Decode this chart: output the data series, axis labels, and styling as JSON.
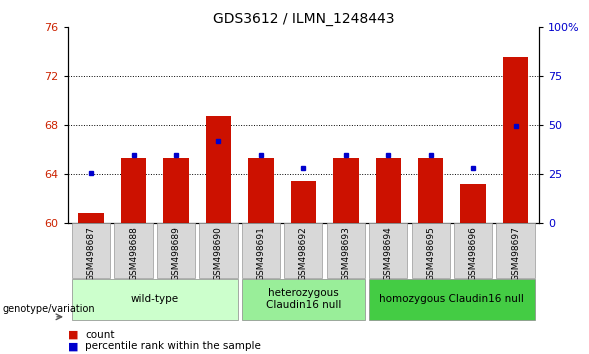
{
  "title": "GDS3612 / ILMN_1248443",
  "samples": [
    "GSM498687",
    "GSM498688",
    "GSM498689",
    "GSM498690",
    "GSM498691",
    "GSM498692",
    "GSM498693",
    "GSM498694",
    "GSM498695",
    "GSM498696",
    "GSM498697"
  ],
  "red_values": [
    60.8,
    65.3,
    65.3,
    68.7,
    65.3,
    63.4,
    65.3,
    65.3,
    65.3,
    63.2,
    73.5
  ],
  "blue_values": [
    64.1,
    65.5,
    65.5,
    66.7,
    65.5,
    64.5,
    65.5,
    65.5,
    65.5,
    64.5,
    67.9
  ],
  "ylim_left": [
    60,
    76
  ],
  "ylim_right": [
    0,
    100
  ],
  "yticks_left": [
    60,
    64,
    68,
    72,
    76
  ],
  "yticks_right": [
    0,
    25,
    50,
    75,
    100
  ],
  "bar_color": "#cc1100",
  "dot_color": "#0000cc",
  "bar_width": 0.6,
  "groups": [
    {
      "label": "wild-type",
      "start": 0,
      "end": 3,
      "color": "#ccffcc"
    },
    {
      "label": "heterozygous\nClaudin16 null",
      "start": 4,
      "end": 6,
      "color": "#99ee99"
    },
    {
      "label": "homozygous Claudin16 null",
      "start": 7,
      "end": 10,
      "color": "#44cc44"
    }
  ],
  "tick_label_color_left": "#cc2200",
  "tick_label_color_right": "#0000cc",
  "annotation_label": "genotype/variation",
  "grid_ticks": [
    64,
    68,
    72
  ]
}
